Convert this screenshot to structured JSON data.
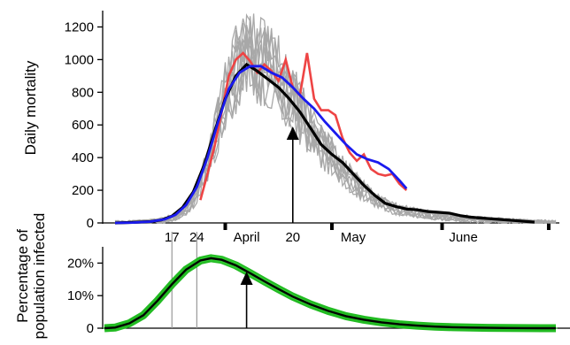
{
  "colors": {
    "axis": "#000000",
    "simulations": "#a8a8a8",
    "observed_red": "#ee4444",
    "model_mean": "#000000",
    "smoothed_blue": "#1a1aee",
    "infected_band": "#22bb22",
    "vline": "#999999"
  },
  "chart_data": [
    {
      "type": "line",
      "ylabel": "Daily mortality",
      "ylim": [
        0,
        1300
      ],
      "yticks": [
        0,
        200,
        400,
        600,
        800,
        1000,
        1200
      ],
      "x_axis_labels": [
        {
          "text": "17",
          "day": 16
        },
        {
          "text": "24",
          "day": 23
        },
        {
          "text": "April",
          "day": 37
        },
        {
          "text": "20",
          "day": 50
        },
        {
          "text": "May",
          "day": 67
        },
        {
          "text": "June",
          "day": 98
        }
      ],
      "month_tick_days": [
        31,
        61,
        92,
        122
      ],
      "xlim": [
        0,
        124
      ],
      "x_unit": "days since 1 March",
      "arrow_day": 50,
      "series": [
        {
          "role": "simulations",
          "x": [
            0,
            5,
            10,
            14,
            17,
            20,
            23,
            26,
            29,
            32,
            35,
            38,
            41,
            44,
            47,
            50,
            53,
            56,
            59,
            62,
            65,
            68,
            71,
            74,
            77,
            80,
            84,
            88,
            92,
            96,
            100,
            104,
            108,
            112,
            116,
            120,
            124
          ],
          "y": [
            0,
            2,
            6,
            18,
            40,
            85,
            170,
            360,
            600,
            850,
            980,
            1010,
            980,
            930,
            870,
            760,
            640,
            540,
            450,
            380,
            300,
            230,
            175,
            130,
            100,
            80,
            65,
            50,
            40,
            32,
            25,
            18,
            14,
            10,
            7,
            4,
            2
          ]
        },
        {
          "role": "observed",
          "x": [
            24,
            26,
            28,
            30,
            32,
            34,
            36,
            38,
            40,
            42,
            44,
            46,
            48,
            50,
            52,
            54,
            56,
            58,
            60,
            62,
            64,
            66,
            68,
            70,
            72,
            74,
            76,
            78,
            80,
            82
          ],
          "y": [
            140,
            300,
            470,
            680,
            900,
            1000,
            1040,
            990,
            920,
            970,
            930,
            870,
            1000,
            830,
            780,
            1040,
            760,
            690,
            690,
            660,
            520,
            430,
            380,
            420,
            330,
            300,
            290,
            300,
            240,
            200
          ]
        },
        {
          "role": "model_mean",
          "x": [
            0,
            5,
            10,
            13,
            16,
            19,
            22,
            25,
            28,
            31,
            34,
            37,
            40,
            43,
            46,
            49,
            52,
            55,
            58,
            61,
            64,
            67,
            70,
            73,
            76,
            79,
            82,
            85,
            88,
            91,
            94,
            97,
            100,
            103,
            106,
            109,
            112,
            115,
            118
          ],
          "y": [
            0,
            3,
            8,
            18,
            42,
            95,
            190,
            350,
            560,
            760,
            900,
            970,
            930,
            880,
            830,
            760,
            680,
            580,
            480,
            420,
            370,
            300,
            230,
            170,
            120,
            100,
            85,
            80,
            70,
            65,
            60,
            45,
            35,
            30,
            25,
            20,
            15,
            10,
            5
          ]
        },
        {
          "role": "smoothed",
          "x": [
            0,
            5,
            10,
            14,
            17,
            20,
            23,
            26,
            29,
            32,
            35,
            38,
            41,
            44,
            47,
            50,
            53,
            56,
            59,
            62,
            65,
            68,
            71,
            74,
            77,
            80,
            82
          ],
          "y": [
            0,
            2,
            8,
            22,
            50,
            110,
            220,
            400,
            620,
            820,
            920,
            960,
            960,
            920,
            890,
            830,
            760,
            700,
            620,
            550,
            480,
            420,
            390,
            370,
            330,
            260,
            210
          ]
        }
      ]
    },
    {
      "type": "area",
      "ylabel": "Percentage of population infected",
      "ylim": [
        0,
        25
      ],
      "yticks": [
        0,
        10,
        20
      ],
      "ytick_labels": [
        "0",
        "10%",
        "20%"
      ],
      "xlim": [
        0,
        124
      ],
      "arrow_day": 37,
      "vlines_day": [
        16,
        23
      ],
      "series": [
        {
          "role": "infected",
          "x": [
            -3,
            0,
            4,
            8,
            12,
            16,
            20,
            24,
            27,
            30,
            34,
            38,
            42,
            46,
            50,
            55,
            60,
            65,
            70,
            75,
            80,
            85,
            90,
            95,
            100,
            105,
            110,
            115,
            120,
            124
          ],
          "y": [
            0,
            0.2,
            1.5,
            4.0,
            8.5,
            13.5,
            18.0,
            20.8,
            21.5,
            21.0,
            19.3,
            16.9,
            14.4,
            12.0,
            9.7,
            7.3,
            5.3,
            3.7,
            2.6,
            1.8,
            1.2,
            0.8,
            0.5,
            0.3,
            0.2,
            0.1,
            0.05,
            0.02,
            0.01,
            0
          ]
        }
      ]
    }
  ]
}
